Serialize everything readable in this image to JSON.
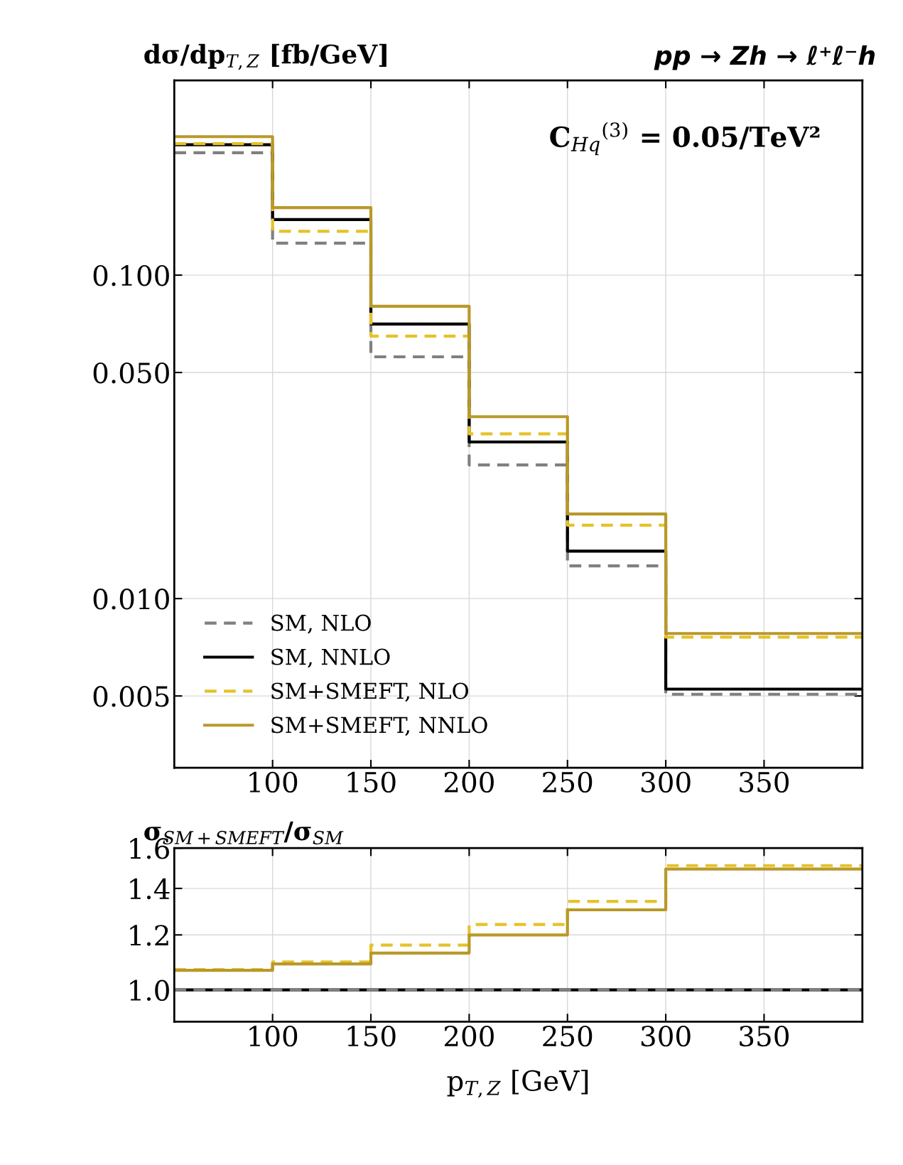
{
  "chart_data": [
    {
      "type": "step",
      "title": "pp → Zh → ℓ⁺ℓ⁻h",
      "ylabel": "dσ/dp$_{T,Z}$ [fb/GeV]",
      "annotations": [
        "C$_{Hq}$$^{(3)}$ = 0.05/TeV²"
      ],
      "x": [
        50,
        100,
        150,
        200,
        250,
        300,
        400
      ],
      "series": [
        {
          "name": "SM, NLO",
          "color": "#808080",
          "line_style": "dashed",
          "values": [
            0.239,
            0.1255,
            0.0559,
            0.0259,
            0.01262,
            0.00506,
            0.00506
          ]
        },
        {
          "name": "SM, NNLO",
          "color": "#000000",
          "line_style": "solid",
          "values": [
            0.253,
            0.1486,
            0.0706,
            0.0305,
            0.01402,
            0.00525,
            0.00525
          ]
        },
        {
          "name": "SM+SMEFT, NLO",
          "color": "#e6c229",
          "line_style": "dashed",
          "values": [
            0.255,
            0.1366,
            0.0648,
            0.0323,
            0.01687,
            0.0076,
            0.0076
          ]
        },
        {
          "name": "SM+SMEFT, NNLO",
          "color": "#b8992a",
          "line_style": "solid",
          "values": [
            0.268,
            0.1617,
            0.0801,
            0.0365,
            0.01826,
            0.0078,
            0.0078
          ]
        }
      ],
      "log": "y",
      "xlim": [
        50,
        400
      ],
      "ylim": [
        0.003,
        0.4
      ],
      "xticks": [
        100,
        150,
        200,
        250,
        300,
        350
      ],
      "yticks": [
        {
          "value": 0.005,
          "label": "0.005"
        },
        {
          "value": 0.01,
          "label": "0.010"
        },
        {
          "value": 0.05,
          "label": "0.050"
        },
        {
          "value": 0.1,
          "label": "0.100"
        }
      ],
      "grid": true,
      "legend": "bottom left"
    },
    {
      "type": "step",
      "ylabel": "σ$_{SM+SMEFT}$/σ$_{SM}$",
      "xlabel": "p$_{T,Z}$ [GeV]",
      "x": [
        50,
        100,
        150,
        200,
        250,
        300,
        400
      ],
      "series": [
        {
          "color": "#000000",
          "line_style": "solid",
          "values": [
            1.0,
            1.0,
            1.0,
            1.0,
            1.0,
            1.0,
            1.0
          ]
        },
        {
          "color": "#808080",
          "line_style": "dashed",
          "values": [
            1.0,
            1.0,
            1.0,
            1.0,
            1.0,
            1.0,
            1.0
          ]
        },
        {
          "color": "#e6c229",
          "line_style": "dashed",
          "values": [
            1.07,
            1.097,
            1.16,
            1.242,
            1.341,
            1.51,
            1.51
          ]
        },
        {
          "color": "#b8992a",
          "line_style": "solid",
          "values": [
            1.067,
            1.09,
            1.13,
            1.2,
            1.304,
            1.493,
            1.493
          ]
        }
      ],
      "log": "y",
      "xlim": [
        50,
        400
      ],
      "ylim": [
        0.9,
        1.6
      ],
      "xticks": [
        100,
        150,
        200,
        250,
        300,
        350
      ],
      "yticks": [
        {
          "value": 1.0,
          "label": "1.0"
        },
        {
          "value": 1.2,
          "label": "1.2"
        },
        {
          "value": 1.4,
          "label": "1.4"
        },
        {
          "value": 1.6,
          "label": "1.6"
        }
      ],
      "grid": true
    }
  ]
}
